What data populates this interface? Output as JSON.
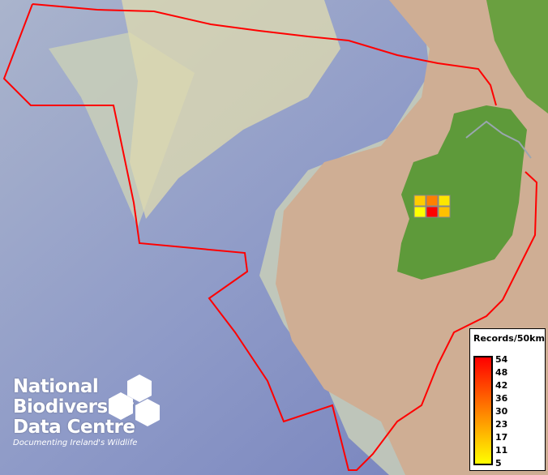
{
  "legend": {
    "title": "Records/50km",
    "ticks": [
      "54",
      "48",
      "42",
      "36",
      "30",
      "23",
      "17",
      "11",
      "5"
    ],
    "color_low": "#ffff00",
    "color_mid": "#ff8000",
    "color_high": "#ff0000"
  },
  "grid_cells": [
    {
      "row": 0,
      "col": 0,
      "color": "#ffcc00"
    },
    {
      "row": 0,
      "col": 1,
      "color": "#ff8000"
    },
    {
      "row": 0,
      "col": 2,
      "color": "#ffe600"
    },
    {
      "row": 1,
      "col": 0,
      "color": "#ffff00"
    },
    {
      "row": 1,
      "col": 1,
      "color": "#ff0000"
    },
    {
      "row": 1,
      "col": 2,
      "color": "#ffc000"
    }
  ],
  "boundary_color": "#ff0000",
  "logo": {
    "line1": "National",
    "line2": "Biodiversity",
    "line3": "Data Centre",
    "tagline": "Documenting Ireland's Wildlife"
  }
}
